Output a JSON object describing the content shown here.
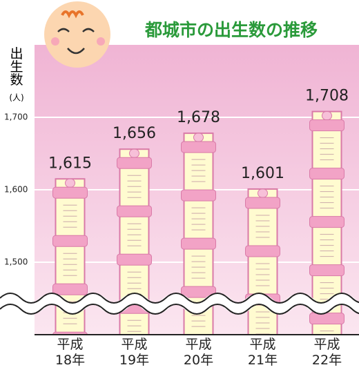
{
  "chart_data": {
    "type": "bar",
    "title": "都城市の出生数の推移",
    "y_label": "出生数",
    "y_unit": "(人)",
    "categories": [
      "平成\n18年",
      "平成\n19年",
      "平成\n20年",
      "平成\n21年",
      "平成\n22年"
    ],
    "values": [
      1615,
      1656,
      1678,
      1601,
      1708
    ],
    "value_labels": [
      "1,615",
      "1,656",
      "1,678",
      "1,601",
      "1,708"
    ],
    "color": "#fffbd0",
    "ylim": [
      1400,
      1800
    ],
    "yticks": [
      {
        "value": 1500,
        "label": "1,500"
      },
      {
        "value": 1600,
        "label": "1,600"
      },
      {
        "value": 1700,
        "label": "1,700"
      }
    ],
    "grid": true
  }
}
